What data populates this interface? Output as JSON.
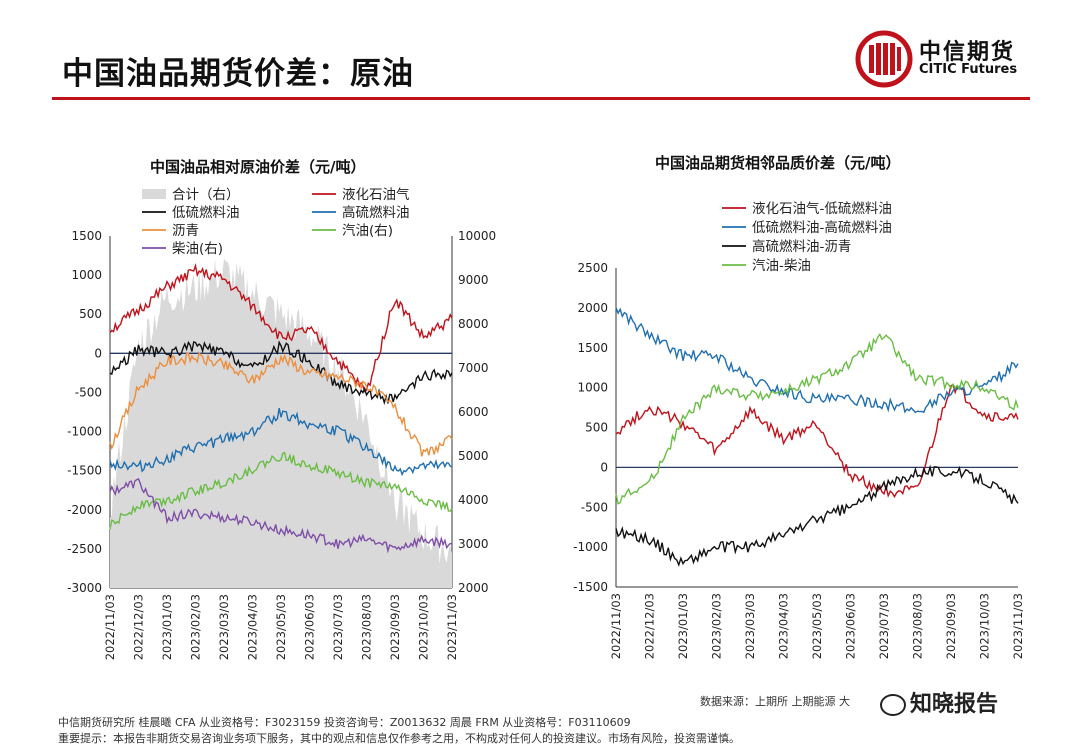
{
  "header": {
    "title": "中国油品期货价差：原油",
    "logo_cn": "中信期货",
    "logo_en": "CITIC Futures",
    "accent": "#c0121b"
  },
  "footer": {
    "authors": "中信期货研究所  桂晨曦 CFA 从业资格号：F3023159 投资咨询号：Z0013632    周晨 FRM  从业资格号：F03110609",
    "disclaimer": "重要提示：本报告非期货交易咨询业务项下服务，其中的观点和信息仅作参考之用，不构成对任何人的投资建议。市场有风险，投资需谨慎。",
    "source": "数据来源：上期所  上期能源  大",
    "watermark": "知晓报告",
    "watermark_icon": "wechat-icon"
  },
  "chart_data": [
    {
      "type": "line",
      "title": "中国油品相对原油价差（元/吨）",
      "ylim_left": [
        -3000,
        1500
      ],
      "yticks_left": [
        1500,
        1000,
        500,
        0,
        -500,
        -1000,
        -1500,
        -2000,
        -2500,
        -3000
      ],
      "ylim_right": [
        2000,
        10000
      ],
      "yticks_right": [
        10000,
        9000,
        8000,
        7000,
        6000,
        5000,
        4000,
        3000,
        2000
      ],
      "x": [
        "2022/11/03",
        "2022/12/03",
        "2023/01/03",
        "2023/02/03",
        "2023/03/03",
        "2023/04/03",
        "2023/05/03",
        "2023/06/03",
        "2023/07/03",
        "2023/08/03",
        "2023/09/03",
        "2023/10/03",
        "2023/11/03"
      ],
      "legend": [
        "合计（右）",
        "液化石油气",
        "低硫燃料油",
        "高硫燃料油",
        "沥青",
        "汽油(右)",
        "柴油(右)"
      ],
      "series": [
        {
          "name": "合计（右）",
          "axis": "right",
          "type": "area",
          "color": "#d9d9d9",
          "values": [
            3800,
            7500,
            8600,
            8800,
            9200,
            8700,
            8200,
            7800,
            7000,
            5800,
            4000,
            3200,
            2800
          ]
        },
        {
          "name": "液化石油气",
          "axis": "left",
          "color": "#c0121b",
          "values": [
            300,
            550,
            850,
            1050,
            950,
            600,
            200,
            300,
            -100,
            -500,
            700,
            200,
            450
          ]
        },
        {
          "name": "低硫燃料油",
          "axis": "left",
          "color": "#111111",
          "values": [
            -250,
            50,
            0,
            100,
            0,
            -200,
            100,
            -100,
            -400,
            -500,
            -600,
            -300,
            -250
          ]
        },
        {
          "name": "高硫燃料油",
          "axis": "left",
          "color": "#1f6fb0",
          "values": [
            -1400,
            -1450,
            -1350,
            -1200,
            -1100,
            -1000,
            -750,
            -900,
            -1000,
            -1200,
            -1500,
            -1450,
            -1450
          ]
        },
        {
          "name": "沥青",
          "axis": "left",
          "color": "#ed8f3e",
          "values": [
            -1200,
            -450,
            -100,
            -50,
            -150,
            -350,
            -50,
            -250,
            -300,
            -400,
            -700,
            -1300,
            -1100
          ]
        },
        {
          "name": "汽油(右)",
          "axis": "right",
          "color": "#6abd45",
          "values": [
            3400,
            3900,
            4000,
            4200,
            4400,
            4700,
            5000,
            4800,
            4600,
            4400,
            4300,
            4000,
            3800
          ]
        },
        {
          "name": "柴油(右)",
          "axis": "right",
          "color": "#7f4fa7",
          "values": [
            4200,
            4400,
            3600,
            3700,
            3600,
            3500,
            3300,
            3200,
            3000,
            3100,
            2900,
            3100,
            3000
          ]
        }
      ]
    },
    {
      "type": "line",
      "title": "中国油品期货相邻品质价差（元/吨）",
      "ylim": [
        -1500,
        2500
      ],
      "yticks": [
        2500,
        2000,
        1500,
        1000,
        500,
        0,
        -500,
        -1000,
        -1500
      ],
      "x": [
        "2022/11/03",
        "2022/12/03",
        "2023/01/03",
        "2023/02/03",
        "2023/03/03",
        "2023/04/03",
        "2023/05/03",
        "2023/06/03",
        "2023/07/03",
        "2023/08/03",
        "2023/09/03",
        "2023/10/03",
        "2023/11/03"
      ],
      "legend": [
        "液化石油气-低硫燃料油",
        "低硫燃料油-高硫燃料油",
        "高硫燃料油-沥青",
        "汽油-柴油"
      ],
      "series": [
        {
          "name": "液化石油气-低硫燃料油",
          "color": "#c0121b",
          "values": [
            450,
            750,
            550,
            200,
            700,
            350,
            550,
            -100,
            -300,
            -300,
            1050,
            650,
            600
          ]
        },
        {
          "name": "低硫燃料油-高硫燃料油",
          "color": "#1f6fb0",
          "values": [
            2000,
            1650,
            1400,
            1400,
            1100,
            950,
            850,
            850,
            800,
            700,
            950,
            1000,
            1300
          ]
        },
        {
          "name": "高硫燃料油-沥青",
          "color": "#111111",
          "values": [
            -800,
            -900,
            -1200,
            -1000,
            -1000,
            -850,
            -650,
            -500,
            -250,
            -50,
            -50,
            -150,
            -450
          ]
        },
        {
          "name": "汽油-柴油",
          "color": "#6abd45",
          "values": [
            -400,
            -200,
            600,
            1000,
            900,
            950,
            1100,
            1300,
            1650,
            1100,
            1050,
            1000,
            750
          ]
        }
      ]
    }
  ]
}
